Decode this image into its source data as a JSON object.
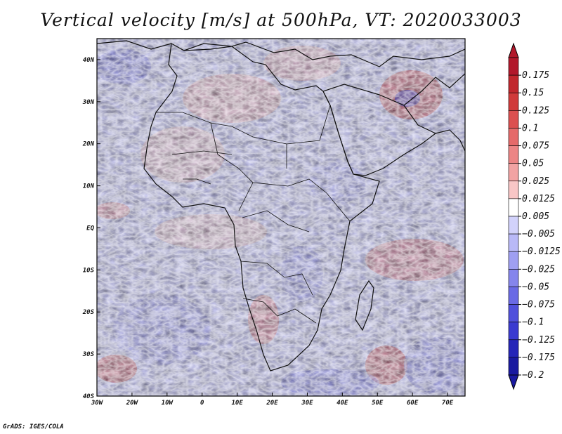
{
  "chart_data": {
    "type": "heatmap",
    "title": "Vertical velocity [m/s] at 500hPa, VT: 2020033003",
    "variable": "Vertical velocity",
    "units": "m/s",
    "level": "500hPa",
    "valid_time": "2020033003",
    "xlim": [
      -30,
      75
    ],
    "ylim": [
      -40,
      45
    ],
    "x_ticks": [
      -30,
      -20,
      -10,
      0,
      10,
      20,
      30,
      40,
      50,
      60,
      70
    ],
    "x_tick_labels": [
      "30W",
      "20W",
      "10W",
      "0",
      "10E",
      "20E",
      "30E",
      "40E",
      "50E",
      "60E",
      "70E"
    ],
    "y_ticks": [
      40,
      30,
      20,
      10,
      0,
      -10,
      -20,
      -30,
      -40
    ],
    "y_tick_labels": [
      "40N",
      "30N",
      "20N",
      "10N",
      "EQ",
      "10S",
      "20S",
      "30S",
      "40S"
    ],
    "colorbar": {
      "levels": [
        0.175,
        0.15,
        0.125,
        0.1,
        0.075,
        0.05,
        0.025,
        0.0125,
        0.005,
        -0.005,
        -0.0125,
        -0.025,
        -0.05,
        -0.075,
        -0.1,
        -0.125,
        -0.175,
        -0.2
      ],
      "labels": [
        "0.175",
        "0.15",
        "0.125",
        "0.1",
        "0.075",
        "0.05",
        "0.025",
        "0.0125",
        "0.005",
        "−0.005",
        "−0.0125",
        "−0.025",
        "−0.05",
        "−0.075",
        "−0.1",
        "−0.125",
        "−0.175",
        "−0.2"
      ],
      "colors": [
        "#b2182b",
        "#c1272d",
        "#d03a3a",
        "#dc5050",
        "#e56a6a",
        "#ec8585",
        "#f2a3a3",
        "#f8c6c6",
        "#ffffff",
        "#d2d2fb",
        "#b9b9f7",
        "#9f9ff2",
        "#8585ec",
        "#6a6ae5",
        "#5050dc",
        "#3a3ad0",
        "#2525b8",
        "#1a1aa0"
      ]
    },
    "map_region": "Africa"
  },
  "footer": "GrADS: IGES/COLA"
}
